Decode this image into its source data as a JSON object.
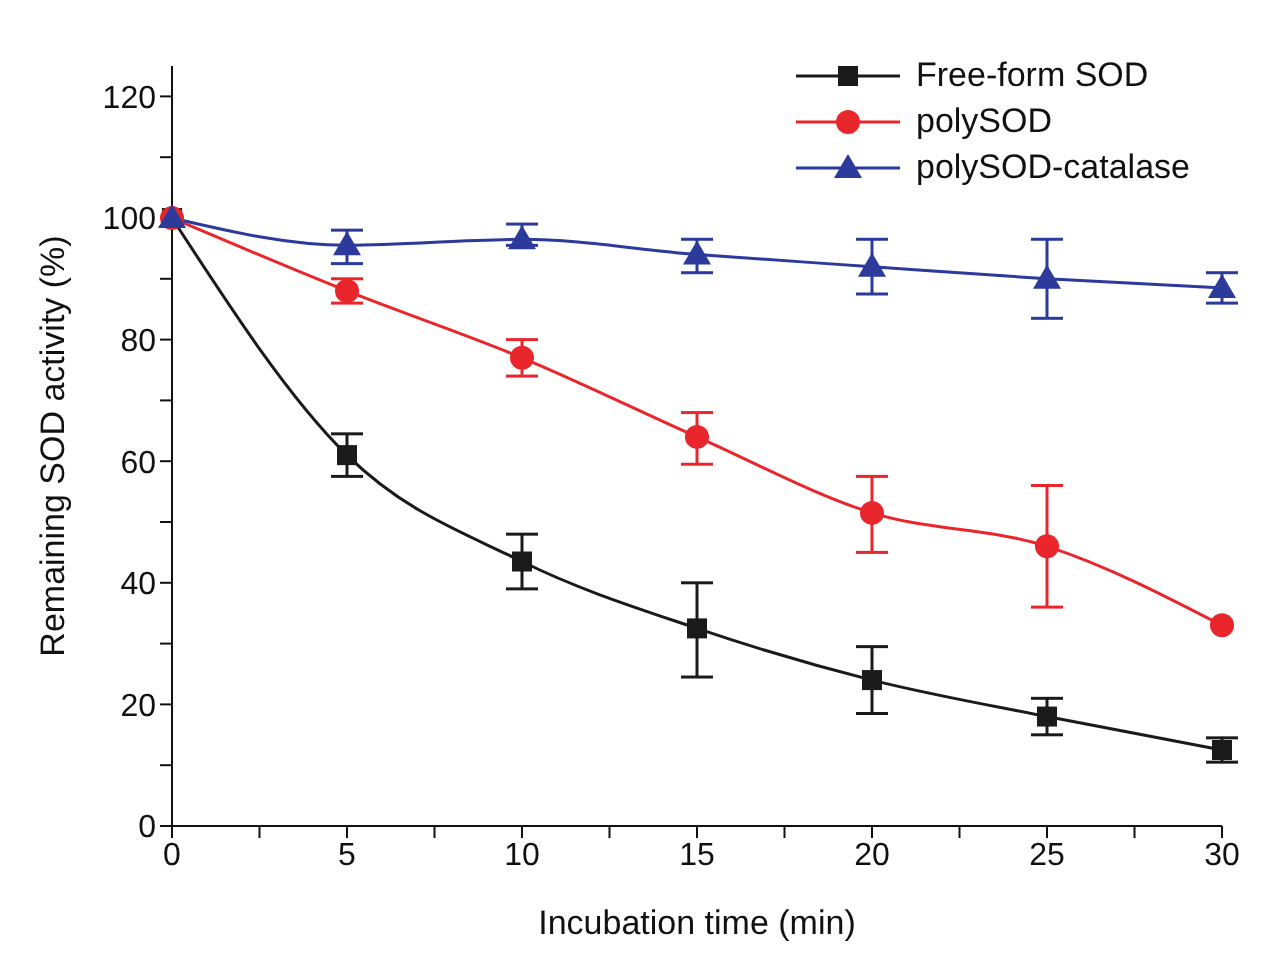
{
  "chart_data": {
    "type": "line",
    "xlabel": "Incubation time (min)",
    "ylabel": "Remaining SOD activity (%)",
    "x": [
      0,
      5,
      10,
      15,
      20,
      25,
      30
    ],
    "xlim": [
      0,
      30
    ],
    "xticks": [
      0,
      {
        "value": 2.5,
        "label": null
      },
      5,
      {
        "value": 7.5,
        "label": null
      },
      10,
      {
        "value": 12.5,
        "label": null
      },
      15,
      {
        "value": 17.5,
        "label": null
      },
      20,
      {
        "value": 22.5,
        "label": null
      },
      25,
      {
        "value": 27.5,
        "label": null
      },
      30
    ],
    "ylim": [
      0,
      125
    ],
    "yticks": [
      0,
      {
        "value": 10,
        "label": null
      },
      20,
      {
        "value": 30,
        "label": null
      },
      40,
      {
        "value": 50,
        "label": null
      },
      60,
      {
        "value": 70,
        "label": null
      },
      80,
      {
        "value": 90,
        "label": null
      },
      100,
      {
        "value": 110,
        "label": null
      },
      120
    ],
    "legend": "top right",
    "line_style": "solid",
    "series": [
      {
        "name": "Free-form SOD",
        "color": "#1a1a1a",
        "marker": "square",
        "values": [
          100,
          61,
          43.5,
          32.5,
          24,
          18,
          12.5
        ],
        "errors": [
          null,
          [
            57.5,
            64.5
          ],
          [
            39,
            48
          ],
          [
            24.5,
            40
          ],
          [
            18.5,
            29.5
          ],
          [
            15,
            21
          ],
          [
            10.5,
            14.5
          ]
        ]
      },
      {
        "name": "polySOD",
        "color": "#e8262b",
        "marker": "circle",
        "values": [
          100,
          88,
          77,
          64,
          51.5,
          46,
          33
        ],
        "errors": [
          null,
          [
            86,
            90
          ],
          [
            74,
            80
          ],
          [
            59.5,
            68
          ],
          [
            45,
            57.5
          ],
          [
            36,
            56
          ],
          null
        ]
      },
      {
        "name": "polySOD-catalase",
        "color": "#2b3a9b",
        "marker": "triangle",
        "values": [
          100,
          95.5,
          96.5,
          94,
          92,
          90,
          88.5
        ],
        "errors": [
          null,
          [
            92.5,
            98
          ],
          [
            95.5,
            99
          ],
          [
            91,
            96.5
          ],
          [
            87.5,
            96.5
          ],
          [
            83.5,
            96.5
          ],
          [
            86,
            91
          ]
        ]
      }
    ]
  }
}
